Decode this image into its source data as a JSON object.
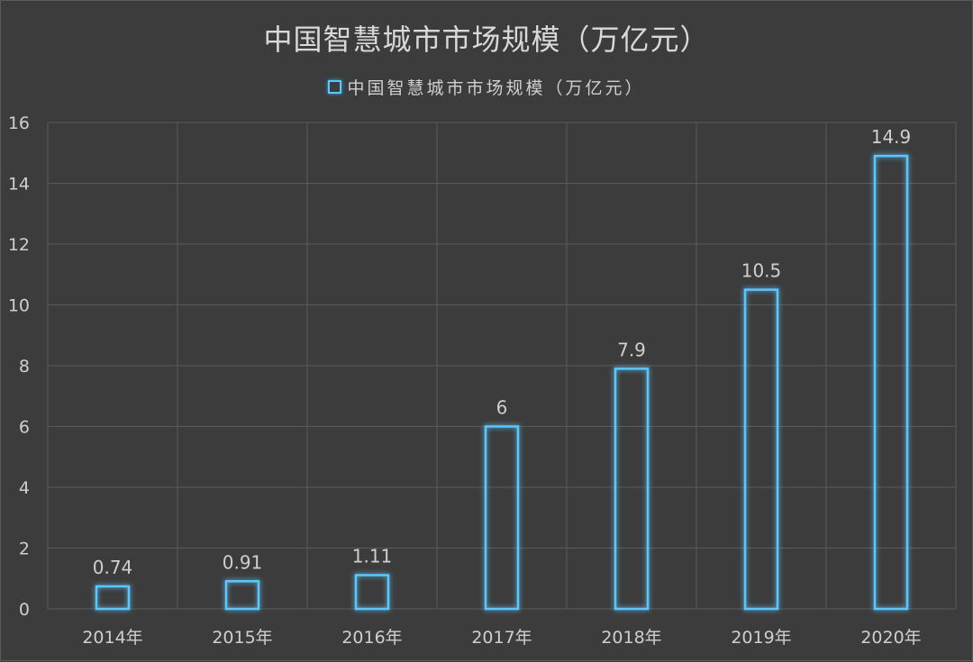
{
  "chart_data": {
    "type": "bar",
    "title": "中国智慧城市市场规模（万亿元）",
    "legend": [
      "中国智慧城市市场规模（万亿元）"
    ],
    "legend_position": "top",
    "categories": [
      "2014年",
      "2015年",
      "2016年",
      "2017年",
      "2018年",
      "2019年",
      "2020年"
    ],
    "series": [
      {
        "name": "中国智慧城市市场规模（万亿元）",
        "values": [
          0.74,
          0.91,
          1.11,
          6,
          7.9,
          10.5,
          14.9
        ]
      }
    ],
    "data_labels": [
      "0.74",
      "0.91",
      "1.11",
      "6",
      "7.9",
      "10.5",
      "14.9"
    ],
    "y_ticks": [
      "0",
      "2",
      "4",
      "6",
      "8",
      "10",
      "12",
      "14",
      "16"
    ],
    "ylim": [
      0,
      16
    ],
    "grid": true,
    "colors": {
      "background": "#3c3c3c",
      "bar_outline": "#5cc6ff",
      "grid": "#5a5a5a",
      "text": "#cfcfcf"
    }
  }
}
